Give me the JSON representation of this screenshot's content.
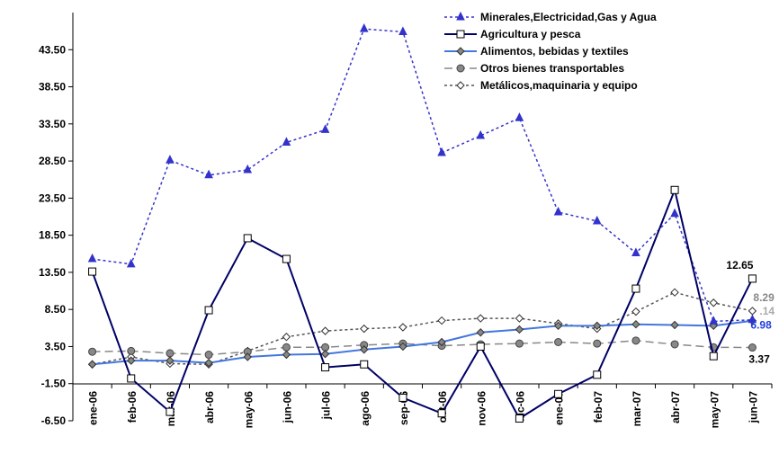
{
  "chart_data": {
    "type": "line",
    "categories": [
      "ene-06",
      "feb-06",
      "mar-06",
      "abr-06",
      "may-06",
      "jun-06",
      "jul-06",
      "ago-06",
      "sep-06",
      "oct-06",
      "nov-06",
      "dic-06",
      "ene-07",
      "feb-07",
      "mar-07",
      "abr-07",
      "may-07",
      "jun-07"
    ],
    "y_ticks": [
      "43.50",
      "38.50",
      "33.50",
      "28.50",
      "23.50",
      "18.50",
      "13.50",
      "8.50",
      "3.50",
      "-1.50",
      "-6.50"
    ],
    "ylim": [
      -6.5,
      48.5
    ],
    "grid": false,
    "legend_position": "top-right",
    "series": [
      {
        "name": "Minerales,Electricidad,Gas y Agua",
        "color": "#3333cc",
        "dash": "dot",
        "marker": "triangle",
        "values": [
          15.3,
          14.6,
          28.6,
          26.6,
          27.3,
          31.0,
          32.7,
          46.3,
          45.9,
          29.6,
          31.9,
          34.3,
          21.6,
          20.4,
          16.1,
          21.4,
          6.9,
          7.1
        ]
      },
      {
        "name": "Agricultura y pesca",
        "color": "#000066",
        "dash": "solid",
        "marker": "square",
        "values": [
          13.6,
          -0.8,
          -5.3,
          8.4,
          18.1,
          15.3,
          0.7,
          1.1,
          -3.4,
          -5.5,
          3.5,
          -6.2,
          -2.9,
          -0.3,
          11.3,
          24.6,
          2.2,
          12.65
        ]
      },
      {
        "name": "Alimentos, bebidas y textiles",
        "color": "#4477dd",
        "dash": "solid",
        "marker": "diamond",
        "values": [
          1.1,
          1.6,
          1.6,
          1.3,
          2.1,
          2.4,
          2.5,
          3.1,
          3.5,
          4.1,
          5.4,
          5.8,
          6.3,
          6.3,
          6.5,
          6.4,
          6.3,
          6.98
        ]
      },
      {
        "name": "Otros bienes transportables",
        "color": "#888888",
        "dash": "longdash",
        "marker": "circle",
        "values": [
          2.8,
          2.9,
          2.6,
          2.4,
          2.8,
          3.4,
          3.4,
          3.7,
          3.9,
          3.6,
          3.8,
          3.9,
          4.1,
          3.9,
          4.3,
          3.8,
          3.4,
          3.37
        ]
      },
      {
        "name": "Metálicos,maquinaria y equipo",
        "color": "#555555",
        "dash": "dot",
        "marker": "open-diamond",
        "values": [
          1.1,
          2.1,
          1.2,
          1.1,
          2.9,
          4.8,
          5.6,
          5.9,
          6.1,
          7.0,
          7.3,
          7.3,
          6.6,
          5.9,
          8.2,
          10.8,
          9.4,
          8.29
        ]
      }
    ],
    "end_labels": [
      {
        "text": "12.65",
        "color": "#000000",
        "series": 1
      },
      {
        "text": "8.29",
        "color": "#888888",
        "series": 4
      },
      {
        "text": ".14",
        "color": "#aaaaaa",
        "series": 4
      },
      {
        "text": "6.98",
        "color": "#1f3fdd",
        "series": 2
      },
      {
        "text": "3.37",
        "color": "#000000",
        "series": 3
      }
    ]
  }
}
